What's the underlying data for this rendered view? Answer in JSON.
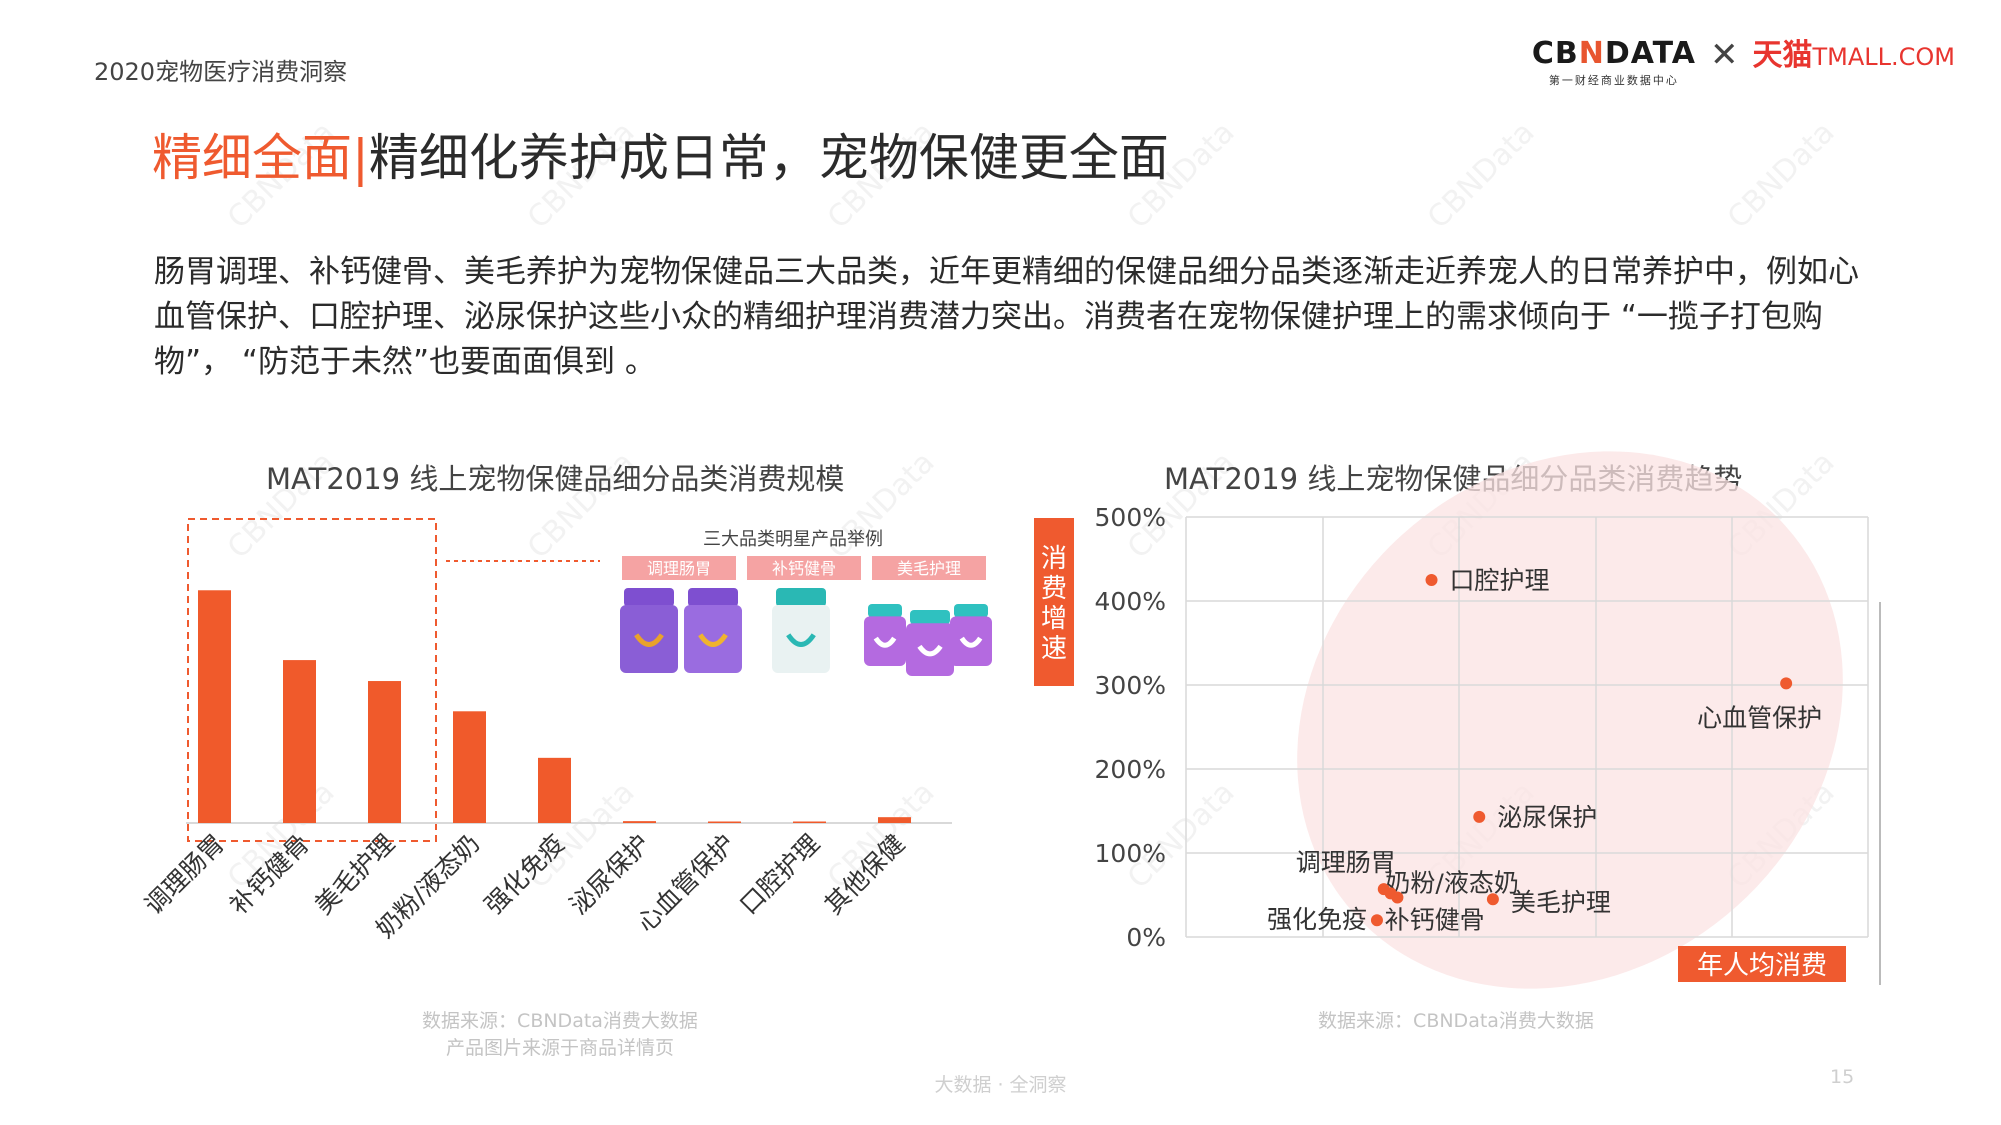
{
  "header": {
    "doc_label": "2020宠物医疗消费洞察",
    "logo_cbn": "CBNDATA",
    "logo_cbn_sub": "第一财经商业数据中心",
    "logo_tmall": "天猫",
    "logo_tmall_en": "TMALL.COM"
  },
  "title": {
    "highlight": "精细全面",
    "separator": "|",
    "rest": "精细化养护成日常，宠物保健更全面"
  },
  "summary": "肠胃调理、补钙健骨、美毛养护为宠物保健品三大品类，近年更精细的保健品细分品类逐渐走近养宠人的日常养护中，例如心血管保护、口腔护理、泌尿保护这些小众的精细护理消费潜力突出。消费者在宠物保健护理上的需求倾向于 “一揽子打包购物”， “防范于未然”也要面面俱到 。",
  "bar_chart": {
    "title": "MAT2019 线上宠物保健品细分品类消费规模",
    "source_line1": "数据来源：CBNData消费大数据",
    "source_line2": "产品图片来源于商品详情页",
    "inset": {
      "title": "三大品类明星产品举例",
      "tags": [
        "调理肠胃",
        "补钙健骨",
        "美毛护理"
      ]
    }
  },
  "scatter_chart": {
    "title": "MAT2019 线上宠物保健品细分品类消费趋势",
    "source": "数据来源：CBNData消费大数据",
    "y_axis_label": "消费增速",
    "x_axis_label": "年人均消费"
  },
  "footer": {
    "text": "大数据 · 全洞察",
    "page": "15"
  },
  "colors": {
    "accent": "#ef5a2f",
    "bar": "#f05a2b",
    "ellipse": "#fbe3e3",
    "grid": "#d9d9d9"
  },
  "chart_data": [
    {
      "type": "bar",
      "title": "MAT2019 线上宠物保健品细分品类消费规模",
      "categories": [
        "调理肠胃",
        "补钙健骨",
        "美毛护理",
        "奶粉/液态奶",
        "强化免疫",
        "泌尿保护",
        "心血管保护",
        "口腔护理",
        "其他保健"
      ],
      "values": [
        100,
        70,
        61,
        48,
        28,
        0.8,
        0.4,
        0.2,
        2.5
      ],
      "ylim": [
        0,
        110
      ],
      "grid": false,
      "highlight_categories": [
        "调理肠胃",
        "补钙健骨",
        "美毛护理"
      ]
    },
    {
      "type": "scatter",
      "title": "MAT2019 线上宠物保健品细分品类消费趋势",
      "xlabel": "年人均消费",
      "ylabel": "消费增速",
      "ylim": [
        0,
        500
      ],
      "yticks": [
        "0%",
        "100%",
        "200%",
        "300%",
        "400%",
        "500%"
      ],
      "y_unit": "%",
      "grid": true,
      "points": [
        {
          "label": "口腔护理",
          "x": 0.36,
          "y": 425
        },
        {
          "label": "心血管保护",
          "x": 0.88,
          "y": 302
        },
        {
          "label": "泌尿保护",
          "x": 0.43,
          "y": 143
        },
        {
          "label": "调理肠胃",
          "x": 0.29,
          "y": 57
        },
        {
          "label": "奶粉/液态奶",
          "x": 0.31,
          "y": 47
        },
        {
          "label": "美毛护理",
          "x": 0.45,
          "y": 45
        },
        {
          "label": "补钙健骨",
          "x": 0.3,
          "y": 52
        },
        {
          "label": "强化免疫",
          "x": 0.28,
          "y": 20
        }
      ]
    }
  ]
}
